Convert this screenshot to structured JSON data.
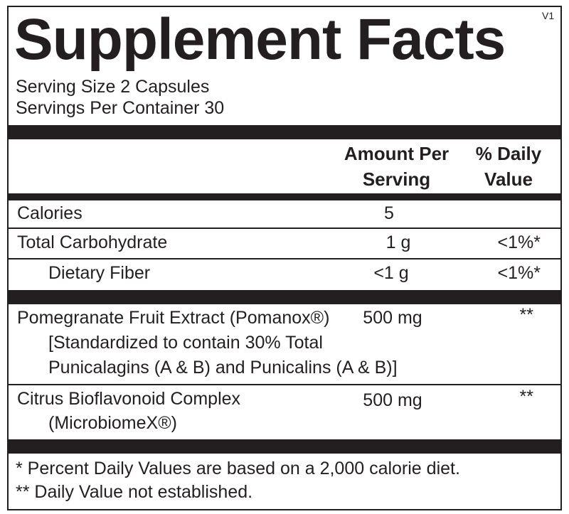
{
  "title": "Supplement Facts",
  "version": "V1",
  "serving": [
    "Serving Size 2 Capsules",
    "Servings Per Container 30"
  ],
  "header": {
    "amount": "Amount Per Serving",
    "daily_value": "% Daily Value"
  },
  "rows": [
    {
      "name": [
        "Calories"
      ],
      "amount": "5"
    },
    {
      "name": [
        "Total Carbohydrate"
      ],
      "amount": "1 g",
      "daily_value": "<1%*"
    },
    {
      "name": [
        "Dietary Fiber"
      ],
      "amount": "<1 g",
      "daily_value": "<1%*"
    },
    {
      "name": [
        "Pomegranate Fruit Extract (Pomanox®)",
        "[Standardized to contain 30% Total",
        "Punicalagins (A & B) and Punicalins (A & B)]"
      ],
      "amount": "500 mg",
      "daily_value": "**"
    },
    {
      "name": [
        "Citrus Bioflavonoid Complex",
        "(MicrobiomeX®)"
      ],
      "amount": "500 mg",
      "daily_value": "**"
    }
  ],
  "footnotes": [
    "* Percent Daily Values are based on a 2,000 calorie diet.",
    "** Daily Value not established."
  ]
}
